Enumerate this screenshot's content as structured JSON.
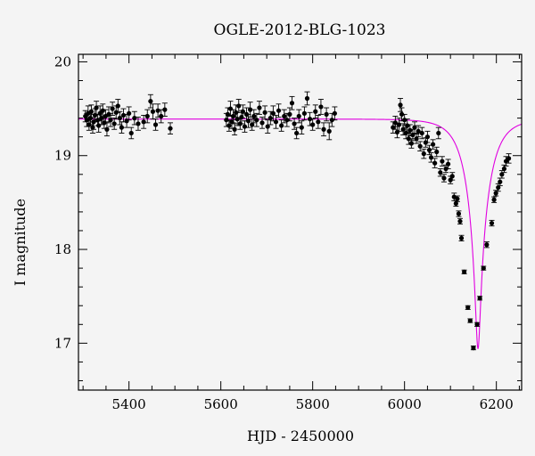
{
  "chart_data": {
    "type": "scatter",
    "title": "OGLE-2012-BLG-1023",
    "xlabel": "HJD - 2450000",
    "ylabel": "I magnitude",
    "xlim": [
      5290,
      6255
    ],
    "ylim": [
      20.08,
      16.5
    ],
    "y_inverted": true,
    "x_ticks": [
      5400,
      5600,
      5800,
      6000,
      6200
    ],
    "y_ticks": [
      17,
      18,
      19,
      20
    ],
    "grid": false,
    "model": {
      "name": "",
      "color": "#e000e0",
      "baseline_mag": 19.39,
      "t0": 6160,
      "tE": 45,
      "u0": 0.105,
      "x_range": [
        5290,
        6255
      ]
    },
    "series": [
      {
        "name": "",
        "color": "#000000",
        "points": [
          [
            5305,
            19.42,
            0.06
          ],
          [
            5308,
            19.38,
            0.07
          ],
          [
            5311,
            19.45,
            0.08
          ],
          [
            5313,
            19.33,
            0.06
          ],
          [
            5316,
            19.4,
            0.07
          ],
          [
            5318,
            19.47,
            0.07
          ],
          [
            5321,
            19.3,
            0.06
          ],
          [
            5323,
            19.36,
            0.08
          ],
          [
            5326,
            19.43,
            0.07
          ],
          [
            5329,
            19.51,
            0.07
          ],
          [
            5332,
            19.38,
            0.06
          ],
          [
            5334,
            19.32,
            0.07
          ],
          [
            5337,
            19.45,
            0.08
          ],
          [
            5340,
            19.4,
            0.07
          ],
          [
            5343,
            19.48,
            0.07
          ],
          [
            5346,
            19.35,
            0.06
          ],
          [
            5349,
            19.42,
            0.07
          ],
          [
            5352,
            19.28,
            0.07
          ],
          [
            5356,
            19.44,
            0.08
          ],
          [
            5360,
            19.38,
            0.07
          ],
          [
            5364,
            19.5,
            0.07
          ],
          [
            5368,
            19.34,
            0.06
          ],
          [
            5372,
            19.46,
            0.07
          ],
          [
            5376,
            19.53,
            0.07
          ],
          [
            5380,
            19.4,
            0.07
          ],
          [
            5384,
            19.3,
            0.06
          ],
          [
            5388,
            19.43,
            0.07
          ],
          [
            5395,
            19.37,
            0.07
          ],
          [
            5400,
            19.45,
            0.07
          ],
          [
            5405,
            19.24,
            0.06
          ],
          [
            5412,
            19.4,
            0.07
          ],
          [
            5420,
            19.34,
            0.07
          ],
          [
            5432,
            19.36,
            0.07
          ],
          [
            5440,
            19.42,
            0.07
          ],
          [
            5447,
            19.58,
            0.07
          ],
          [
            5452,
            19.47,
            0.08
          ],
          [
            5458,
            19.33,
            0.06
          ],
          [
            5463,
            19.48,
            0.07
          ],
          [
            5470,
            19.42,
            0.07
          ],
          [
            5478,
            19.49,
            0.07
          ],
          [
            5490,
            19.29,
            0.06
          ],
          [
            5612,
            19.38,
            0.07
          ],
          [
            5615,
            19.44,
            0.07
          ],
          [
            5618,
            19.32,
            0.06
          ],
          [
            5621,
            19.5,
            0.08
          ],
          [
            5624,
            19.36,
            0.07
          ],
          [
            5627,
            19.42,
            0.07
          ],
          [
            5630,
            19.28,
            0.06
          ],
          [
            5633,
            19.46,
            0.08
          ],
          [
            5636,
            19.39,
            0.07
          ],
          [
            5639,
            19.53,
            0.07
          ],
          [
            5642,
            19.34,
            0.06
          ],
          [
            5645,
            19.41,
            0.07
          ],
          [
            5648,
            19.47,
            0.07
          ],
          [
            5652,
            19.31,
            0.06
          ],
          [
            5656,
            19.44,
            0.07
          ],
          [
            5660,
            19.37,
            0.07
          ],
          [
            5664,
            19.49,
            0.08
          ],
          [
            5668,
            19.33,
            0.06
          ],
          [
            5672,
            19.42,
            0.07
          ],
          [
            5678,
            19.38,
            0.07
          ],
          [
            5684,
            19.51,
            0.07
          ],
          [
            5690,
            19.35,
            0.06
          ],
          [
            5696,
            19.46,
            0.07
          ],
          [
            5702,
            19.31,
            0.07
          ],
          [
            5708,
            19.4,
            0.07
          ],
          [
            5714,
            19.45,
            0.08
          ],
          [
            5720,
            19.36,
            0.07
          ],
          [
            5726,
            19.48,
            0.07
          ],
          [
            5732,
            19.32,
            0.06
          ],
          [
            5738,
            19.42,
            0.07
          ],
          [
            5744,
            19.38,
            0.07
          ],
          [
            5750,
            19.44,
            0.07
          ],
          [
            5755,
            19.56,
            0.07
          ],
          [
            5760,
            19.34,
            0.06
          ],
          [
            5765,
            19.24,
            0.06
          ],
          [
            5770,
            19.42,
            0.07
          ],
          [
            5776,
            19.3,
            0.07
          ],
          [
            5782,
            19.45,
            0.07
          ],
          [
            5788,
            19.61,
            0.07
          ],
          [
            5794,
            19.39,
            0.07
          ],
          [
            5800,
            19.33,
            0.06
          ],
          [
            5806,
            19.47,
            0.07
          ],
          [
            5812,
            19.36,
            0.07
          ],
          [
            5818,
            19.52,
            0.08
          ],
          [
            5824,
            19.28,
            0.07
          ],
          [
            5830,
            19.44,
            0.07
          ],
          [
            5836,
            19.26,
            0.09
          ],
          [
            5842,
            19.38,
            0.07
          ],
          [
            5848,
            19.45,
            0.07
          ],
          [
            5975,
            19.3,
            0.06
          ],
          [
            5980,
            19.35,
            0.07
          ],
          [
            5984,
            19.25,
            0.06
          ],
          [
            5988,
            19.33,
            0.07
          ],
          [
            5991,
            19.54,
            0.07
          ],
          [
            5994,
            19.44,
            0.07
          ],
          [
            5997,
            19.28,
            0.06
          ],
          [
            6000,
            19.38,
            0.06
          ],
          [
            6003,
            19.24,
            0.06
          ],
          [
            6006,
            19.32,
            0.07
          ],
          [
            6009,
            19.18,
            0.06
          ],
          [
            6012,
            19.27,
            0.06
          ],
          [
            6015,
            19.13,
            0.05
          ],
          [
            6018,
            19.22,
            0.06
          ],
          [
            6022,
            19.3,
            0.06
          ],
          [
            6026,
            19.18,
            0.05
          ],
          [
            6030,
            19.26,
            0.06
          ],
          [
            6034,
            19.1,
            0.05
          ],
          [
            6038,
            19.24,
            0.06
          ],
          [
            6042,
            19.02,
            0.05
          ],
          [
            6046,
            19.14,
            0.05
          ],
          [
            6050,
            19.2,
            0.06
          ],
          [
            6054,
            19.06,
            0.05
          ],
          [
            6058,
            18.98,
            0.05
          ],
          [
            6062,
            19.12,
            0.05
          ],
          [
            6066,
            18.92,
            0.05
          ],
          [
            6070,
            19.04,
            0.05
          ],
          [
            6074,
            19.24,
            0.06
          ],
          [
            6078,
            18.82,
            0.04
          ],
          [
            6082,
            18.94,
            0.05
          ],
          [
            6086,
            18.76,
            0.04
          ],
          [
            6090,
            18.86,
            0.04
          ],
          [
            6095,
            18.91,
            0.05
          ],
          [
            6100,
            18.74,
            0.04
          ],
          [
            6104,
            18.78,
            0.04
          ],
          [
            6108,
            18.56,
            0.04
          ],
          [
            6112,
            18.49,
            0.03
          ],
          [
            6115,
            18.54,
            0.03
          ],
          [
            6118,
            18.38,
            0.03
          ],
          [
            6121,
            18.3,
            0.03
          ],
          [
            6124,
            18.12,
            0.03
          ],
          [
            6130,
            17.76,
            0.02
          ],
          [
            6138,
            17.38,
            0.02
          ],
          [
            6143,
            17.24,
            0.02
          ],
          [
            6150,
            16.95,
            0.02
          ],
          [
            6158,
            17.2,
            0.02
          ],
          [
            6164,
            17.48,
            0.02
          ],
          [
            6172,
            17.8,
            0.02
          ],
          [
            6179,
            18.05,
            0.03
          ],
          [
            6190,
            18.28,
            0.03
          ],
          [
            6195,
            18.53,
            0.03
          ],
          [
            6199,
            18.6,
            0.03
          ],
          [
            6204,
            18.66,
            0.04
          ],
          [
            6208,
            18.72,
            0.04
          ],
          [
            6212,
            18.8,
            0.04
          ],
          [
            6217,
            18.86,
            0.04
          ],
          [
            6221,
            18.94,
            0.05
          ],
          [
            6227,
            18.97,
            0.05
          ]
        ]
      }
    ]
  }
}
